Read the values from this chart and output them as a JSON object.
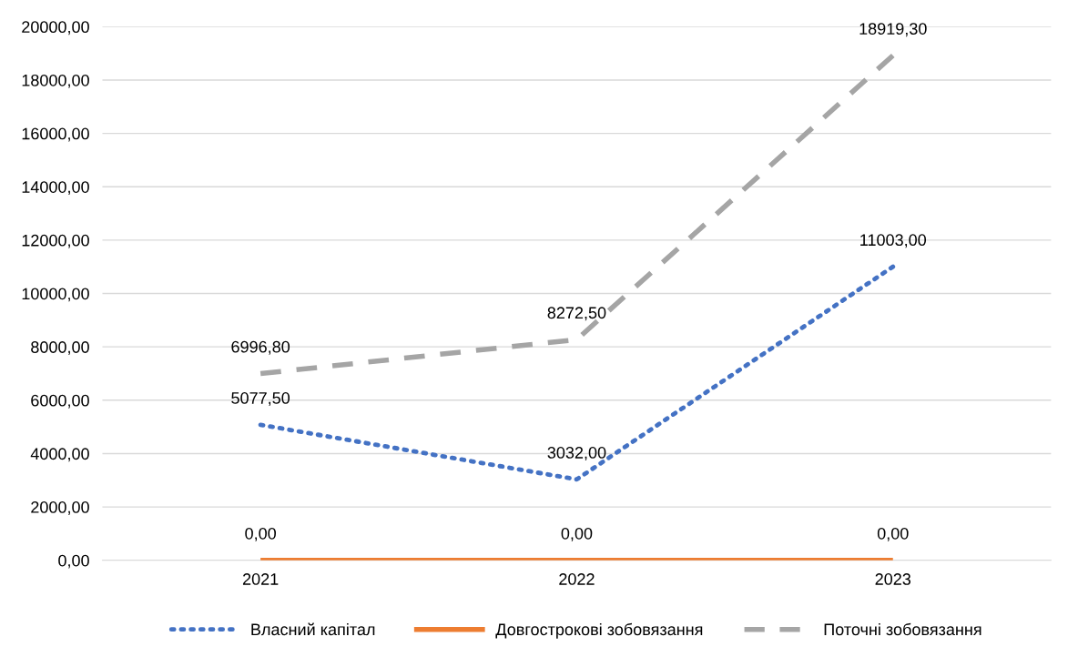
{
  "chart_data": {
    "type": "line",
    "categories": [
      "2021",
      "2022",
      "2023"
    ],
    "series": [
      {
        "name": "Власний капітал",
        "color": "#4472c4",
        "line_style": "dotted",
        "values": [
          5077.5,
          3032,
          11003
        ],
        "value_labels": [
          "5077,50",
          "3032,00",
          "11003,00"
        ]
      },
      {
        "name": "Довгострокові зобовязання",
        "color": "#ed7d31",
        "line_style": "solid",
        "values": [
          0,
          0,
          0
        ],
        "value_labels": [
          "0,00",
          "0,00",
          "0,00"
        ]
      },
      {
        "name": "Поточні зобовязання",
        "color": "#a5a5a5",
        "line_style": "dashed",
        "values": [
          6996.8,
          8272.5,
          18919.3
        ],
        "value_labels": [
          "6996,80",
          "8272,50",
          "18919,30"
        ]
      }
    ],
    "ylim": [
      0,
      20000
    ],
    "yticks": [
      {
        "value": 0,
        "label": "0,00"
      },
      {
        "value": 2000,
        "label": "2000,00"
      },
      {
        "value": 4000,
        "label": "4000,00"
      },
      {
        "value": 6000,
        "label": "6000,00"
      },
      {
        "value": 8000,
        "label": "8000,00"
      },
      {
        "value": 10000,
        "label": "10000,00"
      },
      {
        "value": 12000,
        "label": "12000,00"
      },
      {
        "value": 14000,
        "label": "14000,00"
      },
      {
        "value": 16000,
        "label": "16000,00"
      },
      {
        "value": 18000,
        "label": "18000,00"
      },
      {
        "value": 20000,
        "label": "20000,00"
      }
    ],
    "grid": "y",
    "legend": "bottom",
    "marker": "none"
  }
}
